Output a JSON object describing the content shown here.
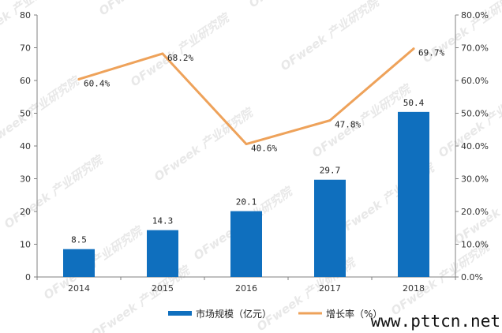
{
  "colors": {
    "bar": "#0f6fbe",
    "line": "#eea25a",
    "axis": "#808080",
    "text": "#333333",
    "watermark": "#d6d6d6"
  },
  "watermark_text": "OFweek 产业研究院",
  "site_label": "www.pttcn.net",
  "chart_data": {
    "type": "bar",
    "categories": [
      "2014",
      "2015",
      "2016",
      "2017",
      "2018"
    ],
    "series": [
      {
        "name": "市场规模（亿元）",
        "type": "bar",
        "axis": "left",
        "values": [
          8.5,
          14.3,
          20.1,
          29.7,
          50.4
        ],
        "labels": [
          "8.5",
          "14.3",
          "20.1",
          "29.7",
          "50.4"
        ]
      },
      {
        "name": "增长率（%）",
        "type": "line",
        "axis": "right",
        "values": [
          60.4,
          68.2,
          40.6,
          47.8,
          69.7
        ],
        "labels": [
          "60.4%",
          "68.2%",
          "40.6%",
          "47.8%",
          "69.7%"
        ]
      }
    ],
    "ylim_left": [
      0,
      80
    ],
    "yticks_left": [
      "0",
      "10",
      "20",
      "30",
      "40",
      "50",
      "60",
      "70",
      "80"
    ],
    "ylim_right": [
      0,
      80
    ],
    "yticks_right": [
      "0.0%",
      "10.0%",
      "20.0%",
      "30.0%",
      "40.0%",
      "50.0%",
      "60.0%",
      "70.0%",
      "80.0%"
    ],
    "grid": false,
    "legend": "bottom"
  }
}
